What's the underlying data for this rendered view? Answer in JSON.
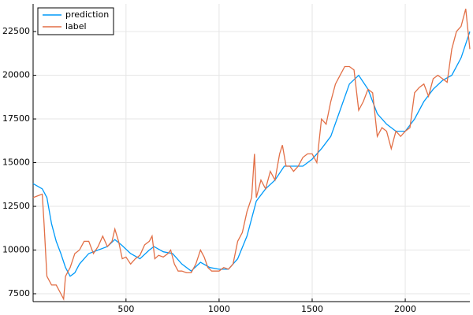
{
  "chart_data": {
    "type": "line",
    "xlim": [
      1,
      2347
    ],
    "ylim": [
      7050,
      24080
    ],
    "xticks": [
      500,
      1000,
      1500,
      2000
    ],
    "yticks": [
      7500,
      10000,
      12500,
      15000,
      17500,
      20000,
      22500
    ],
    "grid": true,
    "legend": "top-left",
    "series": [
      {
        "name": "prediction",
        "color": "#009af9",
        "x": [
          1,
          50,
          75,
          100,
          125,
          150,
          175,
          200,
          225,
          250,
          275,
          300,
          350,
          400,
          440,
          475,
          525,
          575,
          625,
          650,
          700,
          750,
          800,
          850,
          900,
          950,
          1000,
          1050,
          1100,
          1150,
          1200,
          1250,
          1300,
          1350,
          1400,
          1450,
          1500,
          1550,
          1600,
          1650,
          1700,
          1750,
          1800,
          1850,
          1900,
          1950,
          2000,
          2050,
          2100,
          2150,
          2200,
          2250,
          2300,
          2347
        ],
        "values": [
          13800,
          13500,
          13000,
          11500,
          10500,
          9800,
          9000,
          8500,
          8700,
          9200,
          9500,
          9800,
          10000,
          10200,
          10600,
          10300,
          9800,
          9500,
          10000,
          10200,
          9900,
          9800,
          9200,
          8800,
          9300,
          9000,
          8900,
          8900,
          9500,
          10800,
          12800,
          13500,
          14000,
          14800,
          14800,
          14800,
          15200,
          15800,
          16500,
          18000,
          19500,
          20000,
          19200,
          17800,
          17200,
          16800,
          16800,
          17500,
          18500,
          19200,
          19700,
          20000,
          21000,
          22500
        ]
      },
      {
        "name": "label",
        "color": "#e26f46",
        "x": [
          1,
          50,
          60,
          75,
          100,
          125,
          150,
          165,
          175,
          200,
          225,
          250,
          275,
          300,
          325,
          350,
          375,
          400,
          425,
          440,
          460,
          480,
          500,
          525,
          550,
          575,
          600,
          625,
          640,
          655,
          675,
          700,
          725,
          740,
          760,
          780,
          800,
          825,
          850,
          875,
          900,
          920,
          940,
          960,
          980,
          1000,
          1025,
          1050,
          1075,
          1100,
          1125,
          1150,
          1175,
          1190,
          1200,
          1225,
          1250,
          1275,
          1300,
          1325,
          1340,
          1360,
          1380,
          1400,
          1425,
          1450,
          1475,
          1500,
          1525,
          1550,
          1575,
          1600,
          1625,
          1650,
          1675,
          1700,
          1725,
          1750,
          1775,
          1800,
          1825,
          1850,
          1875,
          1900,
          1925,
          1950,
          1975,
          2000,
          2025,
          2050,
          2075,
          2100,
          2125,
          2150,
          2175,
          2200,
          2225,
          2250,
          2275,
          2300,
          2325,
          2347
        ],
        "values": [
          13000,
          13200,
          11500,
          8500,
          8000,
          8000,
          7500,
          7200,
          8500,
          9000,
          9800,
          10000,
          10500,
          10500,
          9800,
          10200,
          10800,
          10200,
          10500,
          11200,
          10500,
          9500,
          9600,
          9200,
          9500,
          9700,
          10300,
          10500,
          10800,
          9500,
          9700,
          9600,
          9800,
          10000,
          9200,
          8800,
          8800,
          8700,
          8700,
          9200,
          10000,
          9600,
          9000,
          8800,
          8800,
          8800,
          9000,
          8900,
          9200,
          10500,
          11000,
          12200,
          13000,
          15500,
          13000,
          14000,
          13500,
          14500,
          14000,
          15500,
          16000,
          14800,
          14800,
          14500,
          14800,
          15300,
          15500,
          15500,
          15000,
          17500,
          17200,
          18500,
          19500,
          20000,
          20500,
          20500,
          20300,
          18000,
          18500,
          19200,
          19000,
          16500,
          17000,
          16800,
          15800,
          16800,
          16500,
          16800,
          17000,
          19000,
          19300,
          19500,
          18800,
          19800,
          20000,
          19800,
          19600,
          21500,
          22500,
          22800,
          23800,
          21500
        ]
      }
    ]
  }
}
